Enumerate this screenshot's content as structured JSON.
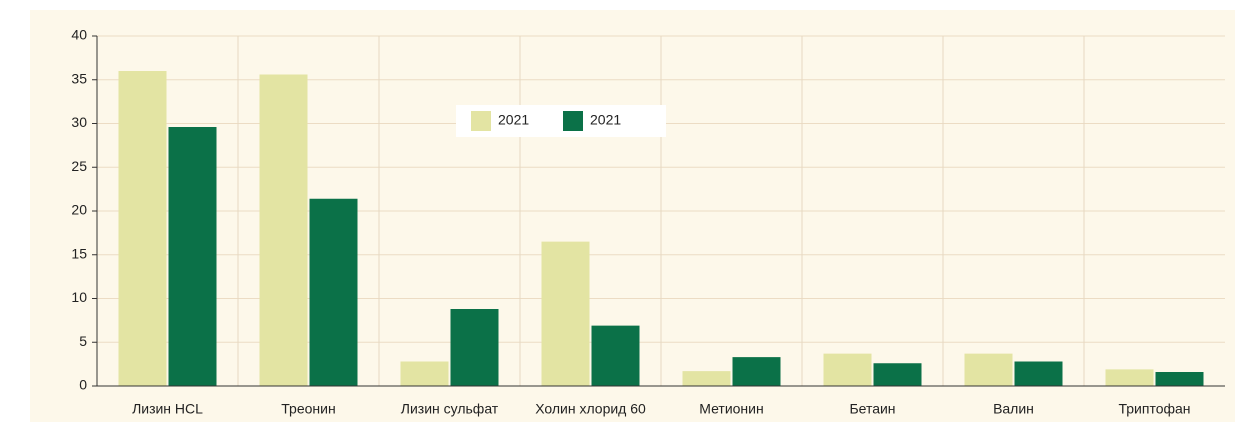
{
  "chart_data": {
    "type": "bar",
    "categories": [
      "Лизин HCL",
      "Треонин",
      "Лизин сульфат",
      "Холин хлорид 60",
      "Метионин",
      "Бетаин",
      "Валин",
      "Триптофан"
    ],
    "series": [
      {
        "name": "2021",
        "color": "#e3e4a3",
        "values": [
          36,
          35.6,
          2.8,
          16.5,
          1.7,
          3.7,
          3.7,
          1.9
        ]
      },
      {
        "name": "2021",
        "color": "#0b7148",
        "values": [
          29.6,
          21.4,
          8.8,
          6.9,
          3.3,
          2.6,
          2.8,
          1.6
        ]
      }
    ],
    "ylim": [
      0,
      40
    ],
    "yticks": [
      0,
      5,
      10,
      15,
      20,
      25,
      30,
      35,
      40
    ],
    "grid": true,
    "legend": "top-center"
  }
}
